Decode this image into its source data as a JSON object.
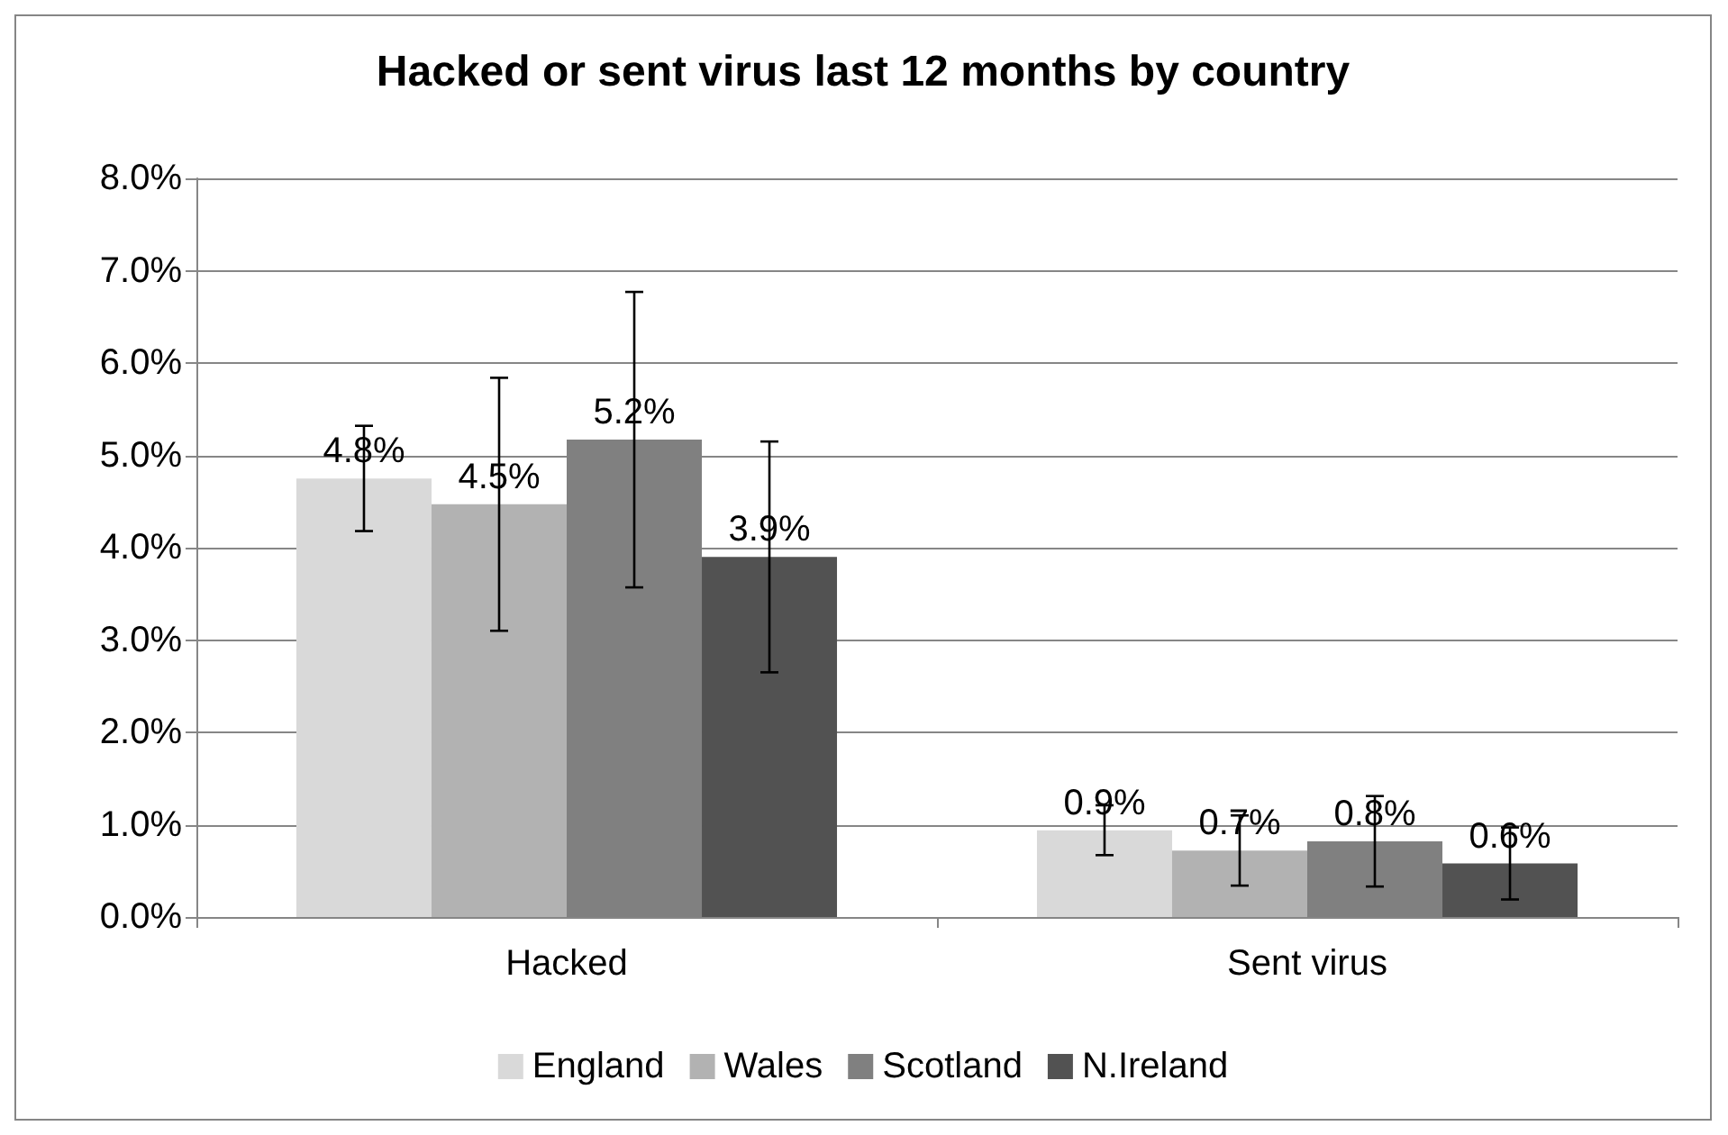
{
  "chart_data": {
    "type": "bar",
    "title": "Hacked or sent virus last 12 months by country",
    "categories": [
      "Hacked",
      "Sent virus"
    ],
    "series": [
      {
        "name": "England",
        "color": "#d9d9d9",
        "values": [
          4.75,
          0.94
        ],
        "errors": [
          0.57,
          0.27
        ],
        "value_labels": [
          "4.8%",
          "0.9%"
        ]
      },
      {
        "name": "Wales",
        "color": "#b2b2b2",
        "values": [
          4.47,
          0.72
        ],
        "errors": [
          1.37,
          0.38
        ],
        "value_labels": [
          "4.5%",
          "0.7%"
        ]
      },
      {
        "name": "Scotland",
        "color": "#808080",
        "values": [
          5.17,
          0.82
        ],
        "errors": [
          1.6,
          0.49
        ],
        "value_labels": [
          "5.2%",
          "0.8%"
        ]
      },
      {
        "name": "N.Ireland",
        "color": "#525252",
        "values": [
          3.9,
          0.58
        ],
        "errors": [
          1.25,
          0.39
        ],
        "value_labels": [
          "3.9%",
          "0.6%"
        ]
      }
    ],
    "ylim": [
      0,
      8
    ],
    "yticks": [
      {
        "value": 0,
        "label": "0.0%"
      },
      {
        "value": 1,
        "label": "1.0%"
      },
      {
        "value": 2,
        "label": "2.0%"
      },
      {
        "value": 3,
        "label": "3.0%"
      },
      {
        "value": 4,
        "label": "4.0%"
      },
      {
        "value": 5,
        "label": "5.0%"
      },
      {
        "value": 6,
        "label": "6.0%"
      },
      {
        "value": 7,
        "label": "7.0%"
      },
      {
        "value": 8,
        "label": "8.0%"
      }
    ],
    "grid": "y",
    "legend": "bottom"
  }
}
